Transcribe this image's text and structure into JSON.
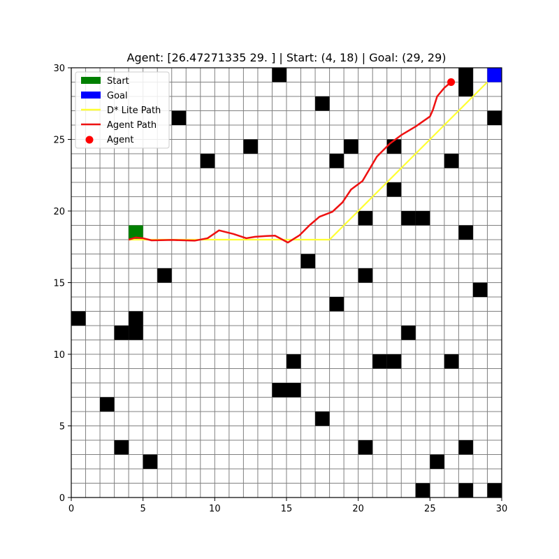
{
  "chart_data": {
    "type": "grid-path",
    "title": "Agent: [26.47271335 29.        ] | Start: (4, 18) | Goal: (29, 29)",
    "xlim": [
      0,
      30
    ],
    "ylim": [
      0,
      30
    ],
    "xticks": [
      0,
      5,
      10,
      15,
      20,
      25,
      30
    ],
    "yticks": [
      0,
      5,
      10,
      15,
      20,
      25,
      30
    ],
    "grid": true,
    "legend_position": "top-left",
    "legend": [
      {
        "label": "Start",
        "kind": "patch",
        "color": "#008000"
      },
      {
        "label": "Goal",
        "kind": "patch",
        "color": "#0000ff"
      },
      {
        "label": "D* Lite Path",
        "kind": "line",
        "color": "#ffff33"
      },
      {
        "label": "Agent Path",
        "kind": "line",
        "color": "#ee1111"
      },
      {
        "label": "Agent",
        "kind": "dot",
        "color": "#ff0000"
      }
    ],
    "start": [
      4,
      18
    ],
    "goal": [
      29,
      29
    ],
    "agent": [
      26.47271335,
      29.0
    ],
    "obstacles": [
      [
        14,
        29
      ],
      [
        27,
        29
      ],
      [
        27,
        28
      ],
      [
        17,
        27
      ],
      [
        7,
        26
      ],
      [
        29,
        26
      ],
      [
        12,
        24
      ],
      [
        19,
        24
      ],
      [
        22,
        24
      ],
      [
        9,
        23
      ],
      [
        18,
        23
      ],
      [
        26,
        23
      ],
      [
        22,
        21
      ],
      [
        20,
        19
      ],
      [
        23,
        19
      ],
      [
        24,
        19
      ],
      [
        27,
        18
      ],
      [
        16,
        16
      ],
      [
        6,
        15
      ],
      [
        20,
        15
      ],
      [
        28,
        14
      ],
      [
        18,
        13
      ],
      [
        0,
        12
      ],
      [
        4,
        12
      ],
      [
        3,
        11
      ],
      [
        4,
        11
      ],
      [
        23,
        11
      ],
      [
        15,
        9
      ],
      [
        21,
        9
      ],
      [
        22,
        9
      ],
      [
        26,
        9
      ],
      [
        14,
        7
      ],
      [
        15,
        7
      ],
      [
        2,
        6
      ],
      [
        17,
        5
      ],
      [
        3,
        3
      ],
      [
        20,
        3
      ],
      [
        27,
        3
      ],
      [
        5,
        2
      ],
      [
        25,
        2
      ],
      [
        24,
        0
      ],
      [
        27,
        0
      ],
      [
        29,
        0
      ]
    ],
    "series": [
      {
        "name": "D* Lite Path",
        "points": [
          [
            4,
            18
          ],
          [
            18,
            18
          ],
          [
            29,
            29
          ]
        ]
      },
      {
        "name": "Agent Path",
        "points": [
          [
            4,
            18
          ],
          [
            4.5,
            18.15
          ],
          [
            5,
            18.1
          ],
          [
            5.6,
            17.95
          ],
          [
            6.5,
            17.97
          ],
          [
            7,
            17.98
          ],
          [
            8,
            17.95
          ],
          [
            8.6,
            17.93
          ],
          [
            9.5,
            18.1
          ],
          [
            10.3,
            18.65
          ],
          [
            11.3,
            18.4
          ],
          [
            12.2,
            18.1
          ],
          [
            12.8,
            18.2
          ],
          [
            13.5,
            18.25
          ],
          [
            14.2,
            18.28
          ],
          [
            15.1,
            17.8
          ],
          [
            15.9,
            18.3
          ],
          [
            16.6,
            19.0
          ],
          [
            17.3,
            19.6
          ],
          [
            18.2,
            19.95
          ],
          [
            18.9,
            20.6
          ],
          [
            19.5,
            21.5
          ],
          [
            20.3,
            22.1
          ],
          [
            21.3,
            23.8
          ],
          [
            22.2,
            24.7
          ],
          [
            23.0,
            25.3
          ],
          [
            24.0,
            25.9
          ],
          [
            25.0,
            26.6
          ],
          [
            25.2,
            27.05
          ],
          [
            25.5,
            28.0
          ],
          [
            26.0,
            28.6
          ],
          [
            26.47,
            29.0
          ]
        ]
      }
    ]
  }
}
